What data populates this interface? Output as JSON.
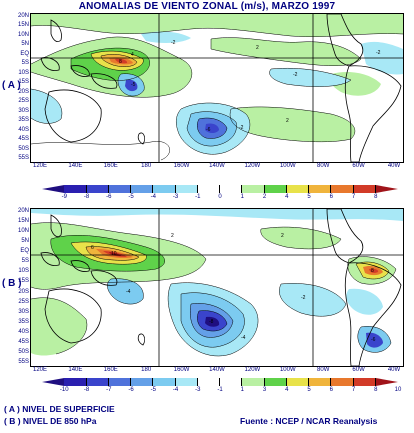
{
  "title": "ANOMALIAS DE VIENTO ZONAL (m/s), MARZO 1997",
  "panels": [
    {
      "tag": "( A )",
      "label": "NIVEL DE SUPERFICIE"
    },
    {
      "tag": "( B )",
      "label": "NIVEL DE 850 hPa"
    }
  ],
  "lat_labels": [
    "20N",
    "15N",
    "10N",
    "5N",
    "EQ",
    "5S",
    "10S",
    "15S",
    "20S",
    "25S",
    "30S",
    "35S",
    "40S",
    "45S",
    "50S",
    "55S"
  ],
  "lon_labels": [
    "120E",
    "140E",
    "160E",
    "180",
    "160W",
    "140W",
    "120W",
    "100W",
    "80W",
    "60W",
    "40W"
  ],
  "colorbar_a": {
    "ticks": [
      "-9",
      "-8",
      "-6",
      "-5",
      "-4",
      "-3",
      "-1",
      "0",
      "1",
      "2",
      "4",
      "5",
      "6",
      "7",
      "8"
    ],
    "colors": [
      "#1f0e80",
      "#2a1fb0",
      "#3a44cc",
      "#4f72db",
      "#64a0e8",
      "#7ccbf0",
      "#a8e8f6",
      "#ffffff",
      "#ffffff",
      "#b9f0a3",
      "#5fd24a",
      "#e8e24a",
      "#f0b43c",
      "#e8782d",
      "#d23b28",
      "#a0141a"
    ]
  },
  "colorbar_b": {
    "ticks": [
      "-10",
      "-8",
      "-7",
      "-6",
      "-5",
      "-4",
      "-3",
      "-1",
      "1",
      "3",
      "4",
      "5",
      "6",
      "7",
      "8",
      "10"
    ],
    "colors": [
      "#1f0e80",
      "#2a1fb0",
      "#3a44cc",
      "#4f72db",
      "#64a0e8",
      "#7ccbf0",
      "#a8e8f6",
      "#ffffff",
      "#ffffff",
      "#b9f0a3",
      "#5fd24a",
      "#e8e24a",
      "#f0b43c",
      "#e8782d",
      "#d23b28",
      "#a0141a"
    ]
  },
  "footer": {
    "legend_a": "( A ) NIVEL DE SUPERFICIE",
    "legend_b": "( B ) NIVEL DE 850 hPa",
    "source": "Fuente : NCEP / NCAR Reanalysis"
  }
}
